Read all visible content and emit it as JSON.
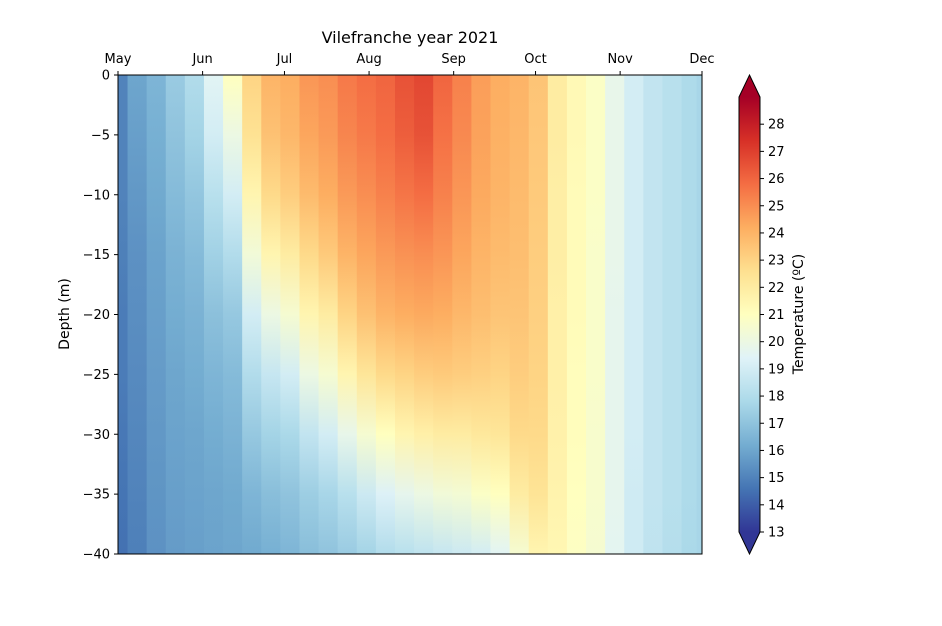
{
  "chart_data": {
    "type": "heatmap",
    "title": "Vilefranche year 2021",
    "xlabel": "",
    "ylabel": "Depth (m)",
    "colorbar_label": "Temperature (ºC)",
    "x_ticks": [
      "May",
      "Jun",
      "Jul",
      "Aug",
      "Sep",
      "Oct",
      "Nov",
      "Dec"
    ],
    "y_ticks": [
      0,
      -5,
      -10,
      -15,
      -20,
      -25,
      -30,
      -35,
      -40
    ],
    "xlim": [
      "2021-05-01",
      "2021-12-01"
    ],
    "ylim": [
      -40,
      0
    ],
    "x_axis_position": "top",
    "colorbar": {
      "vmin": 13,
      "vmax": 29,
      "ticks": [
        13,
        14,
        15,
        16,
        17,
        18,
        19,
        20,
        21,
        22,
        23,
        24,
        25,
        26,
        27,
        28
      ],
      "extend": "both",
      "colormap": "RdYlBu_r",
      "colors": [
        "#313695",
        "#4575b4",
        "#74add1",
        "#abd9e9",
        "#e0f3f8",
        "#ffffbf",
        "#fee090",
        "#fdae61",
        "#f46d43",
        "#d73027",
        "#a50026"
      ]
    },
    "depth_levels": [
      0,
      -5,
      -10,
      -15,
      -20,
      -25,
      -30,
      -35,
      -40
    ],
    "profiles": [
      {
        "date": "2021-05-01",
        "temps": [
          15.0,
          15.0,
          15.0,
          14.9,
          14.8,
          14.8,
          14.7,
          14.6,
          14.5
        ]
      },
      {
        "date": "2021-05-08",
        "temps": [
          16.0,
          15.8,
          15.6,
          15.4,
          15.3,
          15.2,
          15.1,
          15.0,
          14.9
        ]
      },
      {
        "date": "2021-05-15",
        "temps": [
          16.5,
          16.3,
          16.1,
          15.9,
          15.8,
          15.7,
          15.6,
          15.5,
          15.4
        ]
      },
      {
        "date": "2021-05-22",
        "temps": [
          17.3,
          17.0,
          16.7,
          16.4,
          16.2,
          16.0,
          15.9,
          15.8,
          15.7
        ]
      },
      {
        "date": "2021-05-29",
        "temps": [
          18.0,
          17.6,
          17.1,
          16.7,
          16.4,
          16.2,
          16.0,
          15.9,
          15.8
        ]
      },
      {
        "date": "2021-06-05",
        "temps": [
          19.5,
          19.0,
          18.2,
          17.5,
          16.9,
          16.5,
          16.2,
          16.0,
          15.9
        ]
      },
      {
        "date": "2021-06-12",
        "temps": [
          21.0,
          20.0,
          19.0,
          18.0,
          17.2,
          16.7,
          16.4,
          16.1,
          16.0
        ]
      },
      {
        "date": "2021-06-19",
        "temps": [
          23.0,
          22.5,
          21.5,
          20.3,
          19.0,
          18.0,
          17.2,
          16.5,
          16.1
        ]
      },
      {
        "date": "2021-06-26",
        "temps": [
          24.0,
          23.6,
          22.8,
          21.5,
          20.0,
          18.6,
          17.6,
          16.8,
          16.3
        ]
      },
      {
        "date": "2021-07-03",
        "temps": [
          24.2,
          23.9,
          23.2,
          22.0,
          20.5,
          19.0,
          17.8,
          17.0,
          16.5
        ]
      },
      {
        "date": "2021-07-10",
        "temps": [
          24.8,
          24.4,
          23.8,
          22.8,
          21.5,
          20.0,
          18.5,
          17.4,
          16.8
        ]
      },
      {
        "date": "2021-07-17",
        "temps": [
          25.0,
          24.7,
          24.2,
          23.3,
          22.0,
          20.5,
          19.0,
          17.7,
          17.0
        ]
      },
      {
        "date": "2021-07-24",
        "temps": [
          25.5,
          25.2,
          24.7,
          24.0,
          23.0,
          21.5,
          19.8,
          18.2,
          17.3
        ]
      },
      {
        "date": "2021-07-31",
        "temps": [
          25.8,
          25.5,
          25.0,
          24.4,
          23.6,
          22.3,
          20.5,
          18.8,
          17.6
        ]
      },
      {
        "date": "2021-08-07",
        "temps": [
          26.0,
          25.8,
          25.3,
          24.7,
          24.0,
          22.8,
          21.0,
          19.3,
          18.0
        ]
      },
      {
        "date": "2021-08-14",
        "temps": [
          26.5,
          26.2,
          25.6,
          24.9,
          24.2,
          23.0,
          21.5,
          19.7,
          18.2
        ]
      },
      {
        "date": "2021-08-21",
        "temps": [
          26.8,
          26.5,
          25.8,
          25.0,
          24.3,
          23.2,
          21.8,
          20.0,
          18.4
        ]
      },
      {
        "date": "2021-08-28",
        "temps": [
          26.0,
          25.7,
          25.3,
          24.8,
          24.2,
          23.3,
          22.0,
          20.3,
          18.6
        ]
      },
      {
        "date": "2021-09-04",
        "temps": [
          25.3,
          25.1,
          24.8,
          24.4,
          23.9,
          23.2,
          22.0,
          20.4,
          18.8
        ]
      },
      {
        "date": "2021-09-11",
        "temps": [
          24.6,
          24.5,
          24.3,
          24.0,
          23.7,
          23.1,
          22.2,
          20.8,
          19.0
        ]
      },
      {
        "date": "2021-09-18",
        "temps": [
          24.2,
          24.1,
          24.0,
          23.8,
          23.5,
          23.0,
          22.3,
          21.0,
          19.5
        ]
      },
      {
        "date": "2021-09-25",
        "temps": [
          24.0,
          23.9,
          23.8,
          23.7,
          23.5,
          23.2,
          22.8,
          22.0,
          20.5
        ]
      },
      {
        "date": "2021-10-02",
        "temps": [
          23.5,
          23.4,
          23.3,
          23.2,
          23.1,
          23.0,
          22.8,
          22.4,
          21.5
        ]
      },
      {
        "date": "2021-10-09",
        "temps": [
          22.0,
          22.0,
          21.9,
          21.9,
          21.8,
          21.8,
          21.7,
          21.6,
          21.4
        ]
      },
      {
        "date": "2021-10-16",
        "temps": [
          21.3,
          21.3,
          21.2,
          21.2,
          21.2,
          21.1,
          21.1,
          21.0,
          20.9
        ]
      },
      {
        "date": "2021-10-23",
        "temps": [
          20.8,
          20.8,
          20.8,
          20.7,
          20.7,
          20.7,
          20.6,
          20.6,
          20.5
        ]
      },
      {
        "date": "2021-10-30",
        "temps": [
          19.8,
          19.8,
          19.8,
          19.8,
          19.7,
          19.7,
          19.7,
          19.7,
          19.6
        ]
      },
      {
        "date": "2021-11-06",
        "temps": [
          19.0,
          19.0,
          19.0,
          19.0,
          19.0,
          19.0,
          19.0,
          18.9,
          18.9
        ]
      },
      {
        "date": "2021-11-13",
        "temps": [
          18.5,
          18.5,
          18.5,
          18.5,
          18.5,
          18.5,
          18.5,
          18.5,
          18.4
        ]
      },
      {
        "date": "2021-11-20",
        "temps": [
          18.2,
          18.2,
          18.2,
          18.2,
          18.2,
          18.2,
          18.2,
          18.2,
          18.1
        ]
      },
      {
        "date": "2021-11-27",
        "temps": [
          17.9,
          17.9,
          17.9,
          17.9,
          17.9,
          17.9,
          17.9,
          17.9,
          17.8
        ]
      },
      {
        "date": "2021-12-01",
        "temps": [
          17.7,
          17.7,
          17.7,
          17.7,
          17.7,
          17.7,
          17.7,
          17.7,
          17.7
        ]
      }
    ]
  }
}
